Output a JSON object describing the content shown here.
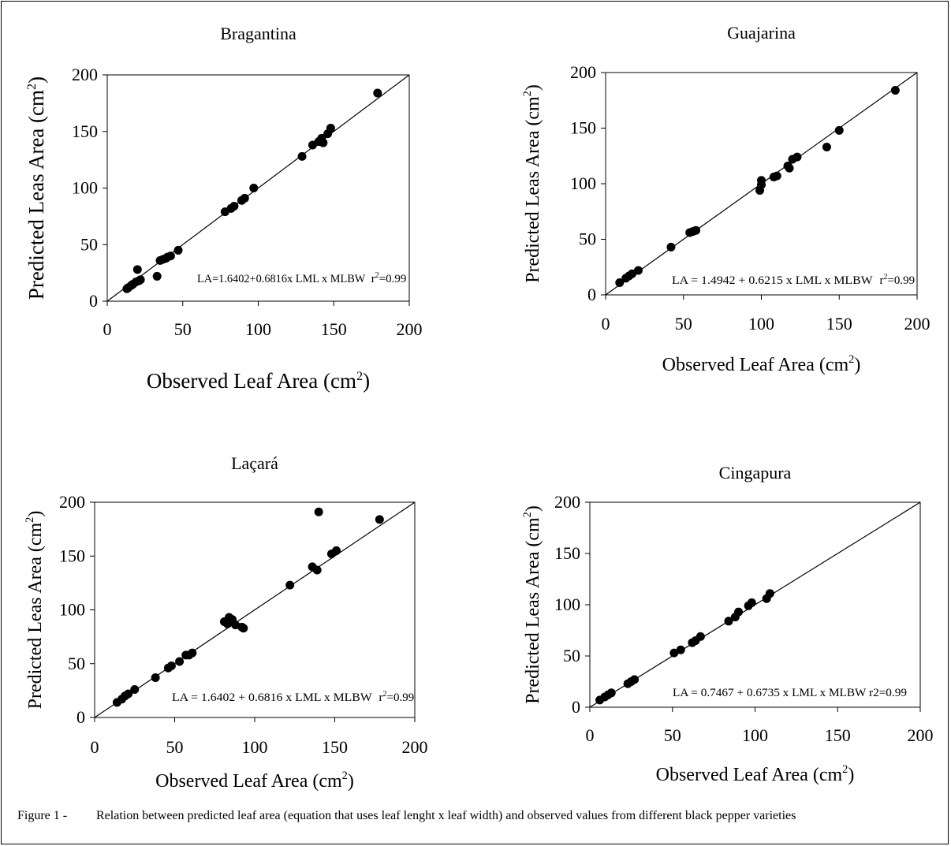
{
  "chart_data": [
    {
      "type": "scatter",
      "title": "Bragantina",
      "xlabel": "Observed Leaf Area (cm",
      "xlabel_sup": "2",
      "xlabel_end": ")",
      "ylabel": "Predicted Leas Area (cm",
      "ylabel_sup": "2",
      "ylabel_end": ")",
      "xlim": [
        0,
        200
      ],
      "ylim": [
        0,
        200
      ],
      "xticks": [
        "0",
        "50",
        "100",
        "150",
        "200"
      ],
      "yticks": [
        "0",
        "50",
        "100",
        "150",
        "200"
      ],
      "equation": "LA=1.6402+0.6816x LML x MLBW",
      "r2_label": "r",
      "r2_sup": "2",
      "r2_value": "=0.99",
      "line": [
        [
          0,
          0
        ],
        [
          200,
          200
        ]
      ],
      "points": [
        [
          13,
          11
        ],
        [
          14,
          12
        ],
        [
          16,
          14
        ],
        [
          17,
          15
        ],
        [
          19,
          17
        ],
        [
          20,
          28
        ],
        [
          21,
          18
        ],
        [
          22,
          19
        ],
        [
          33,
          22
        ],
        [
          35,
          36
        ],
        [
          37,
          37
        ],
        [
          39,
          38
        ],
        [
          40,
          39
        ],
        [
          42,
          40
        ],
        [
          47,
          45
        ],
        [
          78,
          79
        ],
        [
          82,
          82
        ],
        [
          84,
          84
        ],
        [
          89,
          89
        ],
        [
          91,
          91
        ],
        [
          97,
          100
        ],
        [
          129,
          128
        ],
        [
          136,
          138
        ],
        [
          140,
          141
        ],
        [
          142,
          144
        ],
        [
          143,
          140
        ],
        [
          146,
          148
        ],
        [
          148,
          153
        ],
        [
          179,
          184
        ]
      ]
    },
    {
      "type": "scatter",
      "title": "Guajarina",
      "xlabel": "Observed Leaf Area (cm",
      "xlabel_sup": "2",
      "xlabel_end": ")",
      "ylabel": "Predicted Leas Area (cm",
      "ylabel_sup": "2",
      "ylabel_end": ")",
      "xlim": [
        0,
        200
      ],
      "ylim": [
        0,
        200
      ],
      "xticks": [
        "0",
        "50",
        "100",
        "150",
        "200"
      ],
      "yticks": [
        "0",
        "50",
        "100",
        "150",
        "200"
      ],
      "equation": "LA = 1.4942 + 0.6215 x LML x MLBW",
      "r2_label": "r",
      "r2_sup": "2",
      "r2_value": "=0.99",
      "line": [
        [
          0,
          0
        ],
        [
          200,
          200
        ]
      ],
      "points": [
        [
          9,
          11
        ],
        [
          13,
          15
        ],
        [
          15,
          17
        ],
        [
          17,
          19
        ],
        [
          21,
          22
        ],
        [
          42,
          43
        ],
        [
          54,
          56
        ],
        [
          56,
          57
        ],
        [
          58,
          58
        ],
        [
          99,
          94
        ],
        [
          100,
          99
        ],
        [
          100,
          103
        ],
        [
          108,
          106
        ],
        [
          110,
          107
        ],
        [
          117,
          116
        ],
        [
          118,
          114
        ],
        [
          120,
          122
        ],
        [
          123,
          124
        ],
        [
          142,
          133
        ],
        [
          150,
          148
        ],
        [
          186,
          184
        ]
      ]
    },
    {
      "type": "scatter",
      "title": "Laçará",
      "xlabel": "Observed Leaf Area (cm",
      "xlabel_sup": "2",
      "xlabel_end": ")",
      "ylabel": "Predicted Leas Area (cm",
      "ylabel_sup": "2",
      "ylabel_end": ")",
      "xlim": [
        0,
        200
      ],
      "ylim": [
        0,
        200
      ],
      "xticks": [
        "0",
        "50",
        "100",
        "150",
        "200"
      ],
      "yticks": [
        "0",
        "50",
        "100",
        "150",
        "200"
      ],
      "equation": "LA = 1.6402 + 0.6816 x LML x MLBW",
      "r2_label": "r",
      "r2_sup": "2",
      "r2_value": "=0.99",
      "line": [
        [
          0,
          0
        ],
        [
          200,
          200
        ]
      ],
      "points": [
        [
          14,
          14
        ],
        [
          17,
          17
        ],
        [
          19,
          20
        ],
        [
          21,
          22
        ],
        [
          25,
          26
        ],
        [
          38,
          37
        ],
        [
          46,
          46
        ],
        [
          48,
          48
        ],
        [
          53,
          52
        ],
        [
          57,
          58
        ],
        [
          59,
          58
        ],
        [
          61,
          60
        ],
        [
          81,
          89
        ],
        [
          83,
          87
        ],
        [
          84,
          93
        ],
        [
          86,
          91
        ],
        [
          88,
          86
        ],
        [
          92,
          84
        ],
        [
          93,
          83
        ],
        [
          122,
          123
        ],
        [
          136,
          140
        ],
        [
          139,
          137
        ],
        [
          140,
          191
        ],
        [
          148,
          152
        ],
        [
          151,
          155
        ],
        [
          178,
          184
        ]
      ]
    },
    {
      "type": "scatter",
      "title": "Cingapura",
      "xlabel": "Observed Leaf Area (cm",
      "xlabel_sup": "2",
      "xlabel_end": ")",
      "ylabel": "Predicted Leas Area (cm",
      "ylabel_sup": "2",
      "ylabel_end": ")",
      "xlim": [
        0,
        200
      ],
      "ylim": [
        0,
        200
      ],
      "xticks": [
        "0",
        "50",
        "100",
        "150",
        "200"
      ],
      "yticks": [
        "0",
        "50",
        "100",
        "150",
        "200"
      ],
      "equation": "LA = 0.7467 + 0.6735 x LML x MLBW  r2=0.99",
      "r2_label": "",
      "r2_sup": "",
      "r2_value": "",
      "line": [
        [
          0,
          0
        ],
        [
          200,
          200
        ]
      ],
      "points": [
        [
          6,
          7
        ],
        [
          9,
          10
        ],
        [
          11,
          12
        ],
        [
          13,
          14
        ],
        [
          23,
          23
        ],
        [
          25,
          25
        ],
        [
          27,
          27
        ],
        [
          51,
          53
        ],
        [
          55,
          56
        ],
        [
          62,
          63
        ],
        [
          64,
          65
        ],
        [
          67,
          69
        ],
        [
          84,
          84
        ],
        [
          88,
          88
        ],
        [
          90,
          93
        ],
        [
          96,
          99
        ],
        [
          98,
          102
        ],
        [
          107,
          106
        ],
        [
          109,
          111
        ]
      ]
    }
  ],
  "caption": {
    "label": "Figure 1 -",
    "text": "Relation between predicted leaf area (equation that uses leaf lenght x leaf width) and observed values from different black pepper varieties"
  }
}
